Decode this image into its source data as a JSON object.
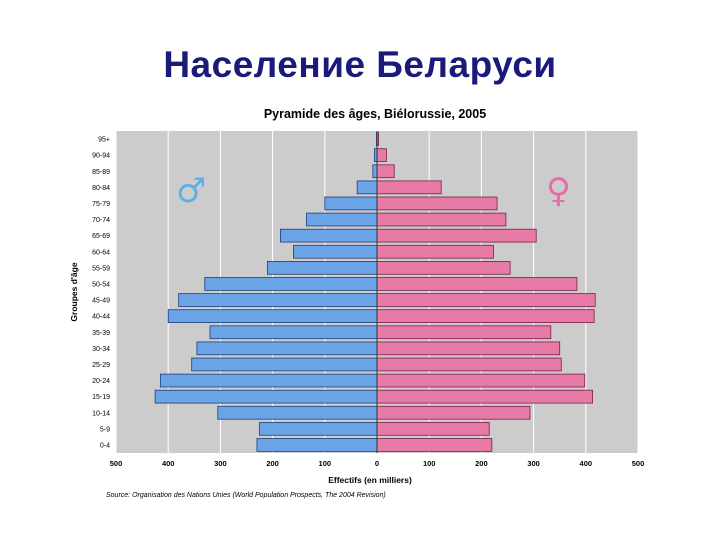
{
  "slide": {
    "title": "Население Беларуси"
  },
  "chart_data": {
    "type": "bar",
    "orientation": "horizontal-pyramid",
    "title": "Pyramide des âges, Biélorussie, 2005",
    "xlabel": "Effectifs (en milliers)",
    "ylabel": "Groupes d'âge",
    "source": "Source: Organisation des Nations Unies (World Population Prospects, The 2004 Revision)",
    "xlim": [
      -500,
      500
    ],
    "x_ticks": [
      {
        "value": -500,
        "label": "500"
      },
      {
        "value": -400,
        "label": "400"
      },
      {
        "value": -300,
        "label": "300"
      },
      {
        "value": -200,
        "label": "200"
      },
      {
        "value": -100,
        "label": "100"
      },
      {
        "value": 0,
        "label": "0"
      },
      {
        "value": 100,
        "label": "100"
      },
      {
        "value": 200,
        "label": "200"
      },
      {
        "value": 300,
        "label": "300"
      },
      {
        "value": 400,
        "label": "400"
      },
      {
        "value": 500,
        "label": "500"
      }
    ],
    "categories": [
      "95+",
      "90-94",
      "85-89",
      "80-84",
      "75-79",
      "70-74",
      "65-69",
      "60-64",
      "55-59",
      "50-54",
      "45-49",
      "40-44",
      "35-39",
      "30-34",
      "25-29",
      "20-24",
      "15-19",
      "10-14",
      "5-9",
      "0-4"
    ],
    "series": [
      {
        "symbol": "♂",
        "color": "#6aa3e6",
        "values": [
          1,
          5,
          8,
          38,
          100,
          135,
          185,
          160,
          210,
          330,
          380,
          400,
          320,
          345,
          355,
          415,
          425,
          305,
          225,
          230
        ]
      },
      {
        "symbol": "♀",
        "color": "#e87aa8",
        "values": [
          3,
          18,
          33,
          123,
          230,
          247,
          305,
          223,
          255,
          383,
          418,
          416,
          333,
          350,
          353,
          398,
          413,
          293,
          215,
          220
        ]
      }
    ],
    "grid": true,
    "legend": "symbols near top"
  }
}
